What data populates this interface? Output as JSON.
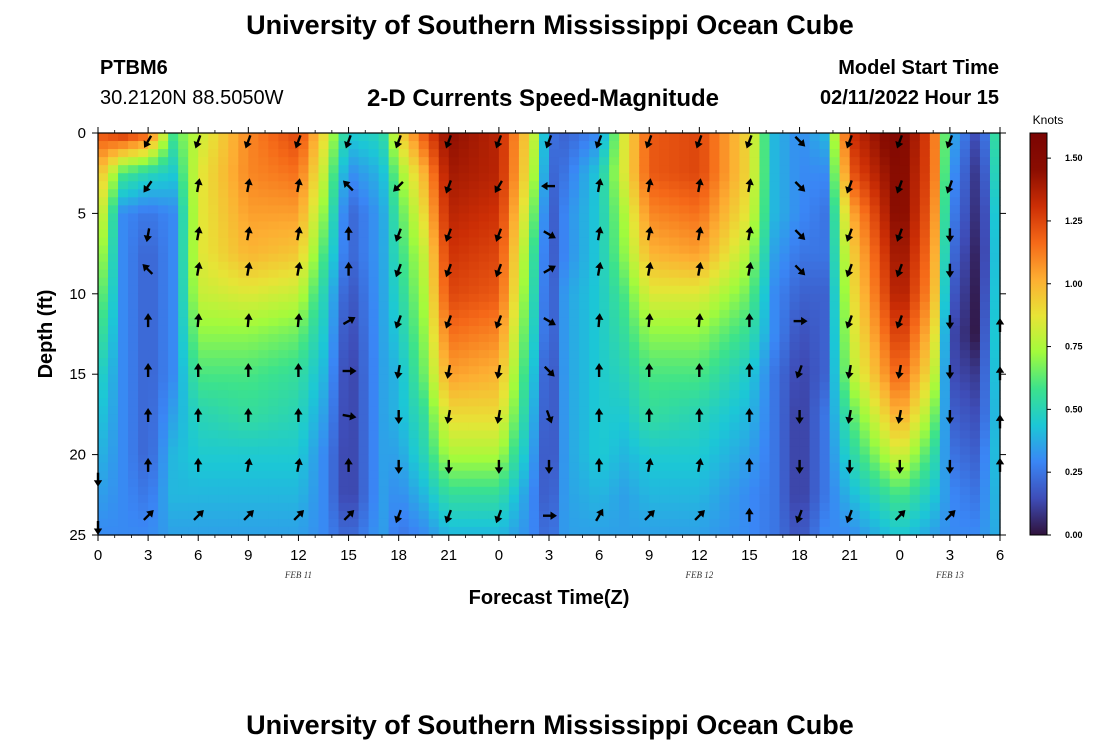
{
  "header": {
    "title": "University of Southern Mississippi Ocean Cube",
    "station_id": "PTBM6",
    "coords": "30.2120N  88.5050W",
    "subtitle": "2-D Currents Speed-Magnitude",
    "model_label": "Model Start Time",
    "model_date": "02/11/2022 Hour 15"
  },
  "footer": {
    "title": "University of Southern Mississippi Ocean Cube"
  },
  "chart_data": {
    "type": "heatmap",
    "title": "2-D Currents Speed-Magnitude",
    "xlabel": "Forecast Time(Z)",
    "ylabel": "Depth (ft)",
    "x_tick_labels": [
      "0",
      "3",
      "6",
      "9",
      "12",
      "15",
      "18",
      "21",
      "0",
      "3",
      "6",
      "9",
      "12",
      "15",
      "18",
      "21",
      "0",
      "3",
      "6"
    ],
    "x_range_hours": [
      0,
      54
    ],
    "x_tick_step_hours": 3,
    "y_tick_labels": [
      "0",
      "5",
      "10",
      "15",
      "20",
      "25"
    ],
    "y_range_ft": [
      0,
      25
    ],
    "date_labels": [
      {
        "text": "FEB 11",
        "hour": 12
      },
      {
        "text": "FEB 12",
        "hour": 36
      },
      {
        "text": "FEB 13",
        "hour": 51
      }
    ],
    "colorbar": {
      "unit": "Knots",
      "range": [
        0,
        1.6
      ],
      "tick_labels": [
        "1.50",
        "1.25",
        "1.00",
        "0.75",
        "0.50",
        "0.25",
        "0.00"
      ],
      "tick_values": [
        1.5,
        1.25,
        1.0,
        0.75,
        0.5,
        0.25,
        0.0
      ],
      "colors": [
        "#30123b",
        "#3e4db8",
        "#3a86f5",
        "#1cc7d6",
        "#3ce28c",
        "#a2fb3c",
        "#e7e436",
        "#fdae32",
        "#f56918",
        "#cc2e05",
        "#8a0d01",
        "#7a0403"
      ]
    },
    "speed_columns": {
      "hours": [
        0,
        1.5,
        3,
        4.5,
        6,
        9,
        12,
        13.5,
        15,
        17,
        18,
        19.5,
        21,
        24,
        26,
        27,
        28,
        30,
        31.5,
        33,
        36,
        39,
        40.5,
        42,
        43.5,
        45,
        48,
        50,
        51,
        52.5,
        53.5,
        54
      ],
      "depths_ft": [
        0,
        2.5,
        5,
        7.5,
        10,
        12.5,
        15,
        17.5,
        20,
        22.5,
        25
      ],
      "speeds_knots": [
        [
          1.2,
          1.0,
          0.9,
          0.8,
          0.7,
          0.6,
          0.5,
          0.45,
          0.4,
          0.35,
          0.3
        ],
        [
          1.3,
          0.6,
          0.3,
          0.3,
          0.3,
          0.3,
          0.3,
          0.3,
          0.3,
          0.3,
          0.3
        ],
        [
          1.2,
          0.5,
          0.25,
          0.2,
          0.2,
          0.2,
          0.2,
          0.2,
          0.2,
          0.25,
          0.3
        ],
        [
          0.6,
          0.45,
          0.3,
          0.3,
          0.3,
          0.3,
          0.3,
          0.35,
          0.4,
          0.4,
          0.35
        ],
        [
          0.8,
          0.85,
          0.85,
          0.85,
          0.8,
          0.7,
          0.6,
          0.5,
          0.45,
          0.4,
          0.35
        ],
        [
          1.1,
          1.1,
          1.05,
          1.0,
          0.85,
          0.7,
          0.6,
          0.55,
          0.45,
          0.4,
          0.35
        ],
        [
          1.25,
          1.15,
          1.05,
          0.95,
          0.8,
          0.65,
          0.55,
          0.5,
          0.45,
          0.4,
          0.35
        ],
        [
          0.9,
          0.8,
          0.7,
          0.6,
          0.5,
          0.45,
          0.4,
          0.35,
          0.3,
          0.3,
          0.3
        ],
        [
          0.45,
          0.3,
          0.2,
          0.2,
          0.15,
          0.12,
          0.1,
          0.1,
          0.1,
          0.1,
          0.2
        ],
        [
          0.5,
          0.4,
          0.35,
          0.35,
          0.35,
          0.35,
          0.35,
          0.35,
          0.35,
          0.35,
          0.35
        ],
        [
          0.9,
          0.7,
          0.6,
          0.55,
          0.5,
          0.45,
          0.4,
          0.4,
          0.35,
          0.3,
          0.25
        ],
        [
          1.2,
          1.0,
          0.9,
          0.8,
          0.75,
          0.7,
          0.65,
          0.55,
          0.5,
          0.4,
          0.3
        ],
        [
          1.45,
          1.4,
          1.35,
          1.3,
          1.25,
          1.15,
          1.05,
          0.9,
          0.75,
          0.55,
          0.4
        ],
        [
          1.35,
          1.35,
          1.3,
          1.25,
          1.2,
          1.1,
          1.0,
          0.9,
          0.75,
          0.55,
          0.4
        ],
        [
          0.85,
          0.8,
          0.7,
          0.6,
          0.55,
          0.5,
          0.45,
          0.4,
          0.35,
          0.3,
          0.3
        ],
        [
          0.25,
          0.2,
          0.15,
          0.15,
          0.15,
          0.15,
          0.12,
          0.12,
          0.12,
          0.15,
          0.2
        ],
        [
          0.2,
          0.25,
          0.3,
          0.3,
          0.35,
          0.35,
          0.35,
          0.35,
          0.35,
          0.35,
          0.35
        ],
        [
          0.3,
          0.45,
          0.45,
          0.45,
          0.45,
          0.45,
          0.45,
          0.45,
          0.45,
          0.4,
          0.35
        ],
        [
          0.85,
          0.85,
          0.75,
          0.7,
          0.6,
          0.55,
          0.5,
          0.45,
          0.4,
          0.35,
          0.35
        ],
        [
          1.2,
          1.2,
          1.1,
          1.0,
          0.85,
          0.7,
          0.6,
          0.55,
          0.45,
          0.4,
          0.35
        ],
        [
          1.25,
          1.25,
          1.15,
          1.05,
          0.85,
          0.7,
          0.6,
          0.5,
          0.45,
          0.4,
          0.35
        ],
        [
          0.9,
          0.9,
          0.85,
          0.75,
          0.65,
          0.55,
          0.45,
          0.4,
          0.35,
          0.3,
          0.3
        ],
        [
          0.4,
          0.4,
          0.4,
          0.35,
          0.3,
          0.3,
          0.25,
          0.25,
          0.25,
          0.25,
          0.25
        ],
        [
          0.3,
          0.3,
          0.3,
          0.25,
          0.2,
          0.15,
          0.12,
          0.1,
          0.1,
          0.1,
          0.15
        ],
        [
          0.4,
          0.3,
          0.25,
          0.25,
          0.2,
          0.2,
          0.2,
          0.25,
          0.25,
          0.25,
          0.3
        ],
        [
          1.3,
          1.2,
          1.0,
          0.9,
          0.85,
          0.8,
          0.75,
          0.6,
          0.5,
          0.4,
          0.3
        ],
        [
          1.55,
          1.5,
          1.5,
          1.45,
          1.4,
          1.3,
          1.2,
          1.05,
          0.85,
          0.6,
          0.45
        ],
        [
          1.2,
          1.2,
          1.15,
          1.1,
          1.05,
          0.95,
          0.85,
          0.7,
          0.55,
          0.45,
          0.35
        ],
        [
          0.4,
          0.35,
          0.3,
          0.25,
          0.2,
          0.15,
          0.15,
          0.2,
          0.25,
          0.3,
          0.3
        ],
        [
          0.15,
          0.1,
          0.08,
          0.05,
          0.03,
          0.02,
          0.1,
          0.15,
          0.2,
          0.25,
          0.3
        ],
        [
          0.3,
          0.25,
          0.2,
          0.2,
          0.25,
          0.3,
          0.3,
          0.3,
          0.35,
          0.35,
          0.35
        ],
        [
          0.9,
          0.85,
          0.8,
          0.75,
          0.7,
          0.65,
          0.6,
          0.55,
          0.5,
          0.45,
          0.4
        ]
      ]
    },
    "vectors": {
      "hours": [
        3,
        6,
        9,
        12,
        15,
        18,
        21,
        24,
        27,
        30,
        33,
        36,
        39,
        42,
        45,
        48,
        51
      ],
      "depths_ft": [
        0.5,
        3.3,
        6.3,
        8.5,
        11.7,
        14.8,
        17.6,
        20.7,
        23.8
      ],
      "rows_direction_deg": [
        [
          210,
          200,
          200,
          200,
          200,
          200,
          200,
          200,
          200,
          200,
          200,
          200,
          200,
          135,
          200,
          200,
          200
        ],
        [
          215,
          10,
          10,
          10,
          315,
          225,
          200,
          210,
          270,
          10,
          10,
          10,
          10,
          135,
          200,
          200,
          200
        ],
        [
          190,
          10,
          10,
          10,
          0,
          200,
          200,
          200,
          120,
          10,
          10,
          10,
          10,
          135,
          200,
          200,
          180
        ],
        [
          315,
          10,
          10,
          10,
          0,
          200,
          200,
          200,
          60,
          10,
          10,
          10,
          10,
          135,
          200,
          200,
          180
        ],
        [
          0,
          5,
          5,
          5,
          60,
          200,
          200,
          200,
          120,
          5,
          5,
          5,
          0,
          90,
          200,
          200,
          180
        ],
        [
          0,
          0,
          0,
          0,
          90,
          190,
          190,
          190,
          135,
          0,
          0,
          0,
          0,
          200,
          190,
          190,
          180
        ],
        [
          0,
          0,
          0,
          0,
          100,
          180,
          190,
          190,
          160,
          0,
          0,
          0,
          0,
          180,
          190,
          190,
          180
        ],
        [
          0,
          0,
          10,
          10,
          0,
          180,
          180,
          180,
          180,
          0,
          10,
          10,
          0,
          180,
          180,
          180,
          180
        ],
        [
          45,
          45,
          45,
          45,
          45,
          200,
          200,
          200,
          90,
          30,
          45,
          45,
          0,
          200,
          200,
          45,
          45
        ]
      ]
    },
    "edge_vectors": [
      {
        "hour": 0,
        "depth": 21.5,
        "direction_deg": 180
      },
      {
        "hour": 0,
        "depth": 24.5,
        "direction_deg": 180
      },
      {
        "hour": 54,
        "depth": 12,
        "direction_deg": 0
      },
      {
        "hour": 54,
        "depth": 15,
        "direction_deg": 0
      },
      {
        "hour": 54,
        "depth": 18,
        "direction_deg": 0
      },
      {
        "hour": 54,
        "depth": 20.7,
        "direction_deg": 0
      }
    ]
  }
}
